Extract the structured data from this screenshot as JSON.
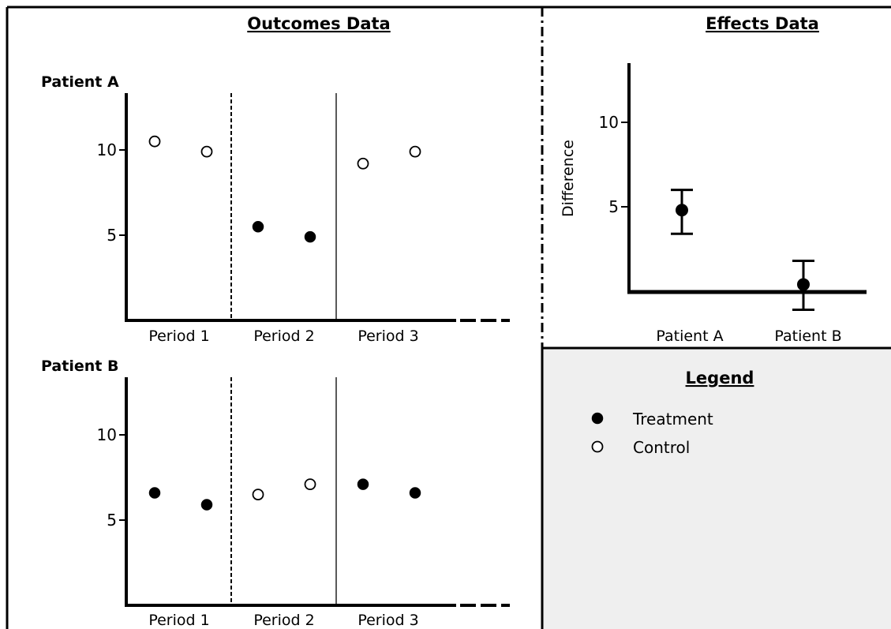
{
  "titles": {
    "outcomes": "Outcomes Data",
    "effects": "Effects Data",
    "legend": "Legend"
  },
  "outcomes": {
    "periods": [
      "Period 1",
      "Period 2",
      "Period 3"
    ],
    "y_ticks": [
      "10",
      "5"
    ],
    "y_range": [
      0,
      13
    ],
    "patients": [
      {
        "name": "Patient A",
        "points": [
          {
            "period": 1,
            "group": "Control",
            "y": 10.5
          },
          {
            "period": 1,
            "group": "Control",
            "y": 9.9
          },
          {
            "period": 2,
            "group": "Treatment",
            "y": 5.5
          },
          {
            "period": 2,
            "group": "Treatment",
            "y": 4.9
          },
          {
            "period": 3,
            "group": "Control",
            "y": 9.2
          },
          {
            "period": 3,
            "group": "Control",
            "y": 9.9
          }
        ]
      },
      {
        "name": "Patient B",
        "points": [
          {
            "period": 1,
            "group": "Treatment",
            "y": 6.6
          },
          {
            "period": 1,
            "group": "Treatment",
            "y": 5.9
          },
          {
            "period": 2,
            "group": "Control",
            "y": 6.5
          },
          {
            "period": 2,
            "group": "Control",
            "y": 7.1
          },
          {
            "period": 3,
            "group": "Treatment",
            "y": 7.1
          },
          {
            "period": 3,
            "group": "Treatment",
            "y": 6.6
          }
        ]
      }
    ]
  },
  "effects": {
    "ylabel": "Difference",
    "y_ticks": [
      "10",
      "5"
    ],
    "y_range": [
      0,
      13.5
    ],
    "categories": [
      "Patient A",
      "Patient B"
    ],
    "values": [
      4.8,
      0.4
    ],
    "lower": [
      3.4,
      -1.1
    ],
    "upper": [
      6.0,
      1.8
    ]
  },
  "legend": {
    "items": [
      {
        "label": "Treatment",
        "marker": "filled-circle"
      },
      {
        "label": "Control",
        "marker": "open-circle"
      }
    ]
  },
  "colors": {
    "background": "#ffffff",
    "legend_panel": "#efefef",
    "ink": "#000000"
  }
}
